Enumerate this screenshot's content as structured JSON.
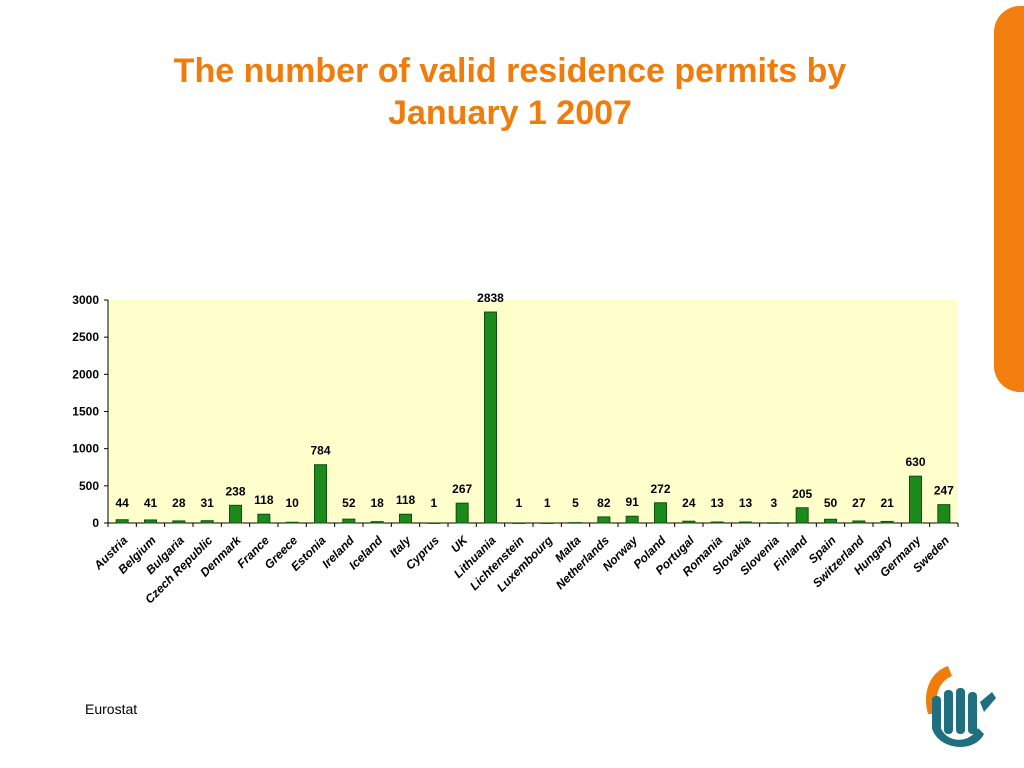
{
  "slide": {
    "title_line1": "The number of valid residence permits by",
    "title_line2": "January 1 2007",
    "source": "Eurostat"
  },
  "colors": {
    "title": "#f07c0c",
    "accent_tab": "#f27e10",
    "plot_background": "#ffffcc",
    "bar_fill": "#1b8a1b",
    "bar_stroke": "#0f4f0f",
    "logo_orange": "#f07c0c",
    "logo_teal": "#1f6f7f"
  },
  "logo_icon": "hand-logo-icon",
  "chart_data": {
    "type": "bar",
    "title": "",
    "xlabel": "",
    "ylabel": "",
    "ylim": [
      0,
      3000
    ],
    "yticks": [
      "0",
      "500",
      "1000",
      "1500",
      "2000",
      "2500",
      "3000"
    ],
    "grid": false,
    "legend": "none",
    "categories": [
      "Austria",
      "Belgium",
      "Bulgaria",
      "Czech Republic",
      "Denmark",
      "France",
      "Greece",
      "Estonia",
      "Ireland",
      "Iceland",
      "Italy",
      "Cyprus",
      "UK",
      "Lithuania",
      "Lichtenstein",
      "Luxembourg",
      "Malta",
      "Netherlands",
      "Norway",
      "Poland",
      "Portugal",
      "Romania",
      "Slovakia",
      "Slovenia",
      "Finland",
      "Spain",
      "Switzerland",
      "Hungary",
      "Germany",
      "Sweden"
    ],
    "values": [
      44,
      41,
      28,
      31,
      238,
      118,
      10,
      784,
      52,
      18,
      118,
      1,
      267,
      2838,
      1,
      1,
      5,
      82,
      91,
      272,
      24,
      13,
      13,
      3,
      205,
      50,
      27,
      21,
      630,
      247
    ],
    "data_labels": [
      "44",
      "41",
      "28",
      "31",
      "238",
      "118",
      "10",
      "784",
      "52",
      "18",
      "118",
      "1",
      "267",
      "2838",
      "1",
      "1",
      "5",
      "82",
      "91",
      "272",
      "24",
      "13",
      "13",
      "3",
      "205",
      "50",
      "27",
      "21",
      "630",
      "247"
    ]
  }
}
